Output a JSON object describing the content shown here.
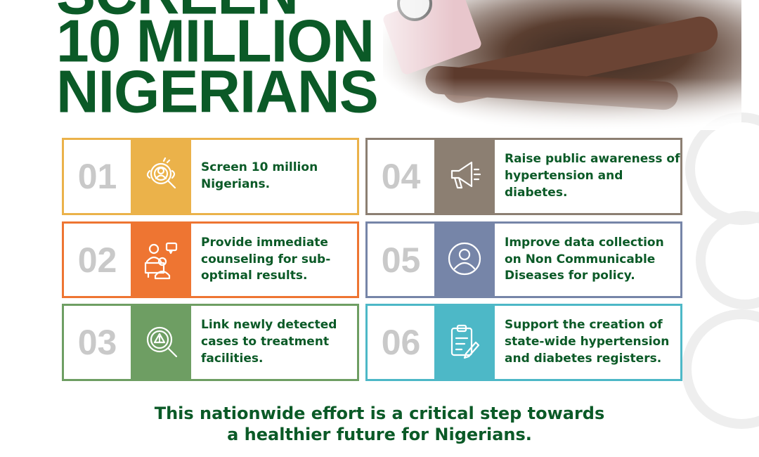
{
  "headline": {
    "line0": "SCREEN",
    "line1": "10 MILLION",
    "line2": "NIGERIANS"
  },
  "cards": [
    {
      "number": "01",
      "text": "Screen 10 million Nigerians.",
      "icon": "search-person-icon",
      "color": "#ebb24a"
    },
    {
      "number": "02",
      "text": "Provide immediate counseling for sub-optimal results.",
      "icon": "counseling-icon",
      "color": "#ee7532"
    },
    {
      "number": "03",
      "text": "Link newly detected cases to treatment facilities.",
      "icon": "warning-search-icon",
      "color": "#6e9e63"
    },
    {
      "number": "04",
      "text": "Raise public awareness of hypertension and diabetes.",
      "icon": "megaphone-icon",
      "color": "#8c7f72"
    },
    {
      "number": "05",
      "text": "Improve data collection on Non Communicable Diseases for policy.",
      "icon": "user-circle-icon",
      "color": "#7685a8"
    },
    {
      "number": "06",
      "text": "Support the creation of state-wide hypertension and diabetes registers.",
      "icon": "clipboard-icon",
      "color": "#4db8c7"
    }
  ],
  "footer": {
    "line1": "This nationwide effort is a critical step towards",
    "line2": "a healthier future for Nigerians."
  }
}
